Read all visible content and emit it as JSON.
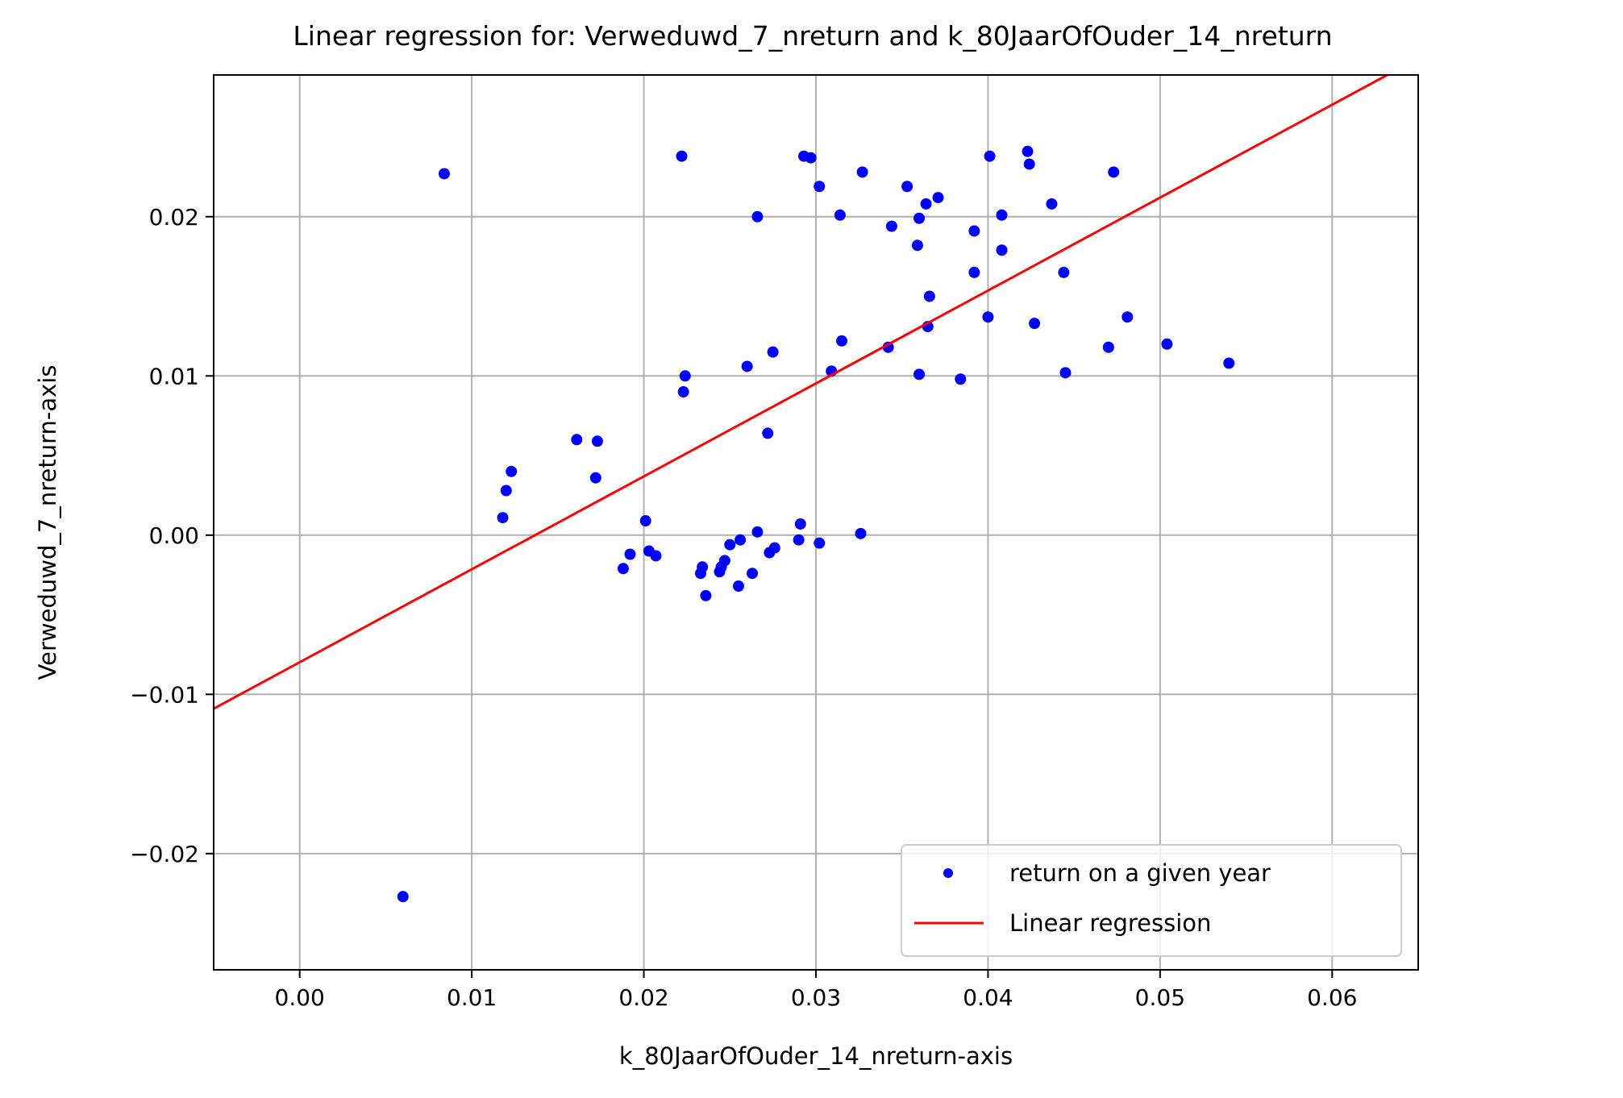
{
  "chart_data": {
    "type": "scatter",
    "title": "Linear regression for: Verweduwd_7_nreturn and k_80JaarOfOuder_14_nreturn",
    "xlabel": "k_80JaarOfOuder_14_nreturn-axis",
    "ylabel": "Verweduwd_7_nreturn-axis",
    "xlim": [
      -0.005,
      0.065
    ],
    "ylim": [
      -0.0273,
      0.0289
    ],
    "xticks": [
      0.0,
      0.01,
      0.02,
      0.03,
      0.04,
      0.05,
      0.06
    ],
    "xtick_labels": [
      "0.00",
      "0.01",
      "0.02",
      "0.03",
      "0.04",
      "0.05",
      "0.06"
    ],
    "yticks": [
      -0.02,
      -0.01,
      0.0,
      0.01,
      0.02
    ],
    "ytick_labels": [
      "−0.02",
      "−0.01",
      "0.00",
      "0.01",
      "0.02"
    ],
    "grid": true,
    "legend_position": "lower-right",
    "colors": {
      "points": "#0000ff",
      "line": "#ff0000",
      "grid": "#b0b0b0"
    },
    "series": [
      {
        "name": "return on a given year",
        "kind": "scatter",
        "points": [
          [
            0.006,
            -0.0227
          ],
          [
            0.0084,
            0.0227
          ],
          [
            0.0118,
            0.0011
          ],
          [
            0.012,
            0.0028
          ],
          [
            0.0123,
            0.004
          ],
          [
            0.0161,
            0.006
          ],
          [
            0.0172,
            0.0036
          ],
          [
            0.0173,
            0.0059
          ],
          [
            0.0188,
            -0.0021
          ],
          [
            0.0192,
            -0.0012
          ],
          [
            0.0201,
            0.0009
          ],
          [
            0.0203,
            -0.001
          ],
          [
            0.0207,
            -0.0013
          ],
          [
            0.0222,
            0.0238
          ],
          [
            0.0223,
            0.009
          ],
          [
            0.0224,
            0.01
          ],
          [
            0.0233,
            -0.0024
          ],
          [
            0.0234,
            -0.002
          ],
          [
            0.0236,
            -0.0038
          ],
          [
            0.0244,
            -0.0023
          ],
          [
            0.0245,
            -0.002
          ],
          [
            0.0247,
            -0.0016
          ],
          [
            0.025,
            -0.0006
          ],
          [
            0.0255,
            -0.0032
          ],
          [
            0.0256,
            -0.0003
          ],
          [
            0.026,
            0.0106
          ],
          [
            0.0263,
            -0.0024
          ],
          [
            0.0266,
            0.02
          ],
          [
            0.0266,
            0.0002
          ],
          [
            0.0272,
            0.0064
          ],
          [
            0.0273,
            -0.0011
          ],
          [
            0.0275,
            0.0115
          ],
          [
            0.0276,
            -0.0008
          ],
          [
            0.029,
            -0.0003
          ],
          [
            0.0291,
            0.0007
          ],
          [
            0.0293,
            0.0238
          ],
          [
            0.0297,
            0.0237
          ],
          [
            0.0302,
            0.0219
          ],
          [
            0.0302,
            -0.0005
          ],
          [
            0.0309,
            0.0103
          ],
          [
            0.0314,
            0.0201
          ],
          [
            0.0315,
            0.0122
          ],
          [
            0.0326,
            0.0001
          ],
          [
            0.0327,
            0.0228
          ],
          [
            0.0342,
            0.0118
          ],
          [
            0.0344,
            0.0194
          ],
          [
            0.0353,
            0.0219
          ],
          [
            0.0359,
            0.0182
          ],
          [
            0.036,
            0.0199
          ],
          [
            0.036,
            0.0101
          ],
          [
            0.0364,
            0.0208
          ],
          [
            0.0365,
            0.0131
          ],
          [
            0.0366,
            0.015
          ],
          [
            0.0371,
            0.0212
          ],
          [
            0.0384,
            0.0098
          ],
          [
            0.0392,
            0.0191
          ],
          [
            0.0392,
            0.0165
          ],
          [
            0.04,
            0.0137
          ],
          [
            0.0401,
            0.0238
          ],
          [
            0.0408,
            0.0201
          ],
          [
            0.0408,
            0.0179
          ],
          [
            0.0423,
            0.0241
          ],
          [
            0.0424,
            0.0233
          ],
          [
            0.0427,
            0.0133
          ],
          [
            0.0437,
            0.0208
          ],
          [
            0.0444,
            0.0165
          ],
          [
            0.0445,
            0.0102
          ],
          [
            0.047,
            0.0118
          ],
          [
            0.0473,
            0.0228
          ],
          [
            0.0481,
            0.0137
          ],
          [
            0.0504,
            0.012
          ],
          [
            0.054,
            0.0108
          ]
        ]
      },
      {
        "name": "Linear regression",
        "kind": "line",
        "x": [
          -0.005,
          0.0632
        ],
        "y": [
          -0.0109,
          0.0289
        ]
      }
    ]
  }
}
